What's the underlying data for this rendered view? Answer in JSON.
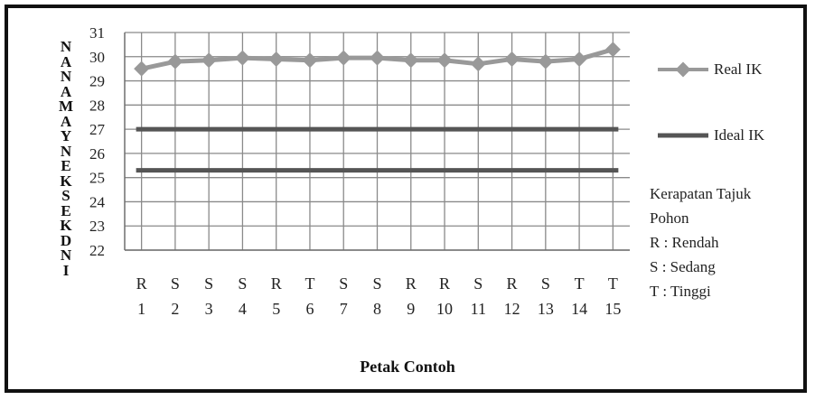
{
  "chart_data": {
    "type": "line",
    "title": "",
    "xlabel": "Petak Contoh",
    "ylabel": "N A N A M A Y N E K S E K D N I",
    "ylim": [
      22,
      31
    ],
    "yticks": [
      "22",
      "23",
      "24",
      "25",
      "26",
      "27",
      "28",
      "29",
      "30",
      "31"
    ],
    "categories": [
      "1",
      "2",
      "3",
      "4",
      "5",
      "6",
      "7",
      "8",
      "9",
      "10",
      "11",
      "12",
      "13",
      "14",
      "15"
    ],
    "category_classes": [
      "R",
      "S",
      "S",
      "S",
      "R",
      "T",
      "S",
      "S",
      "R",
      "R",
      "S",
      "R",
      "S",
      "T",
      "T"
    ],
    "series": [
      {
        "name": "Real IK",
        "color": "#999999",
        "values": [
          29.5,
          29.8,
          29.85,
          29.95,
          29.9,
          29.85,
          29.95,
          29.95,
          29.85,
          29.85,
          29.7,
          29.9,
          29.8,
          29.9,
          30.3
        ]
      },
      {
        "name": "Ideal IK",
        "color": "#555555",
        "values": [
          27,
          27,
          27,
          27,
          27,
          27,
          27,
          27,
          27,
          27,
          27,
          27,
          27,
          27,
          27
        ]
      },
      {
        "name": "",
        "color": "#555555",
        "values": [
          25.3,
          25.3,
          25.3,
          25.3,
          25.3,
          25.3,
          25.3,
          25.3,
          25.3,
          25.3,
          25.3,
          25.3,
          25.3,
          25.3,
          25.3
        ]
      }
    ],
    "legend_placement": "right",
    "grid": true
  },
  "legend": {
    "real_label": "Real IK",
    "ideal_label": "Ideal IK"
  },
  "notes": {
    "line1": "Kerapatan Tajuk",
    "line2": "Pohon",
    "line3": "R : Rendah",
    "line4": "S : Sedang",
    "line5": "T : Tinggi"
  },
  "ytitle_letters": [
    "N",
    "A",
    "N",
    "A",
    "M",
    "A",
    "Y",
    "N",
    "E",
    "K",
    "S",
    "E",
    "K",
    "D",
    "N",
    "I"
  ]
}
